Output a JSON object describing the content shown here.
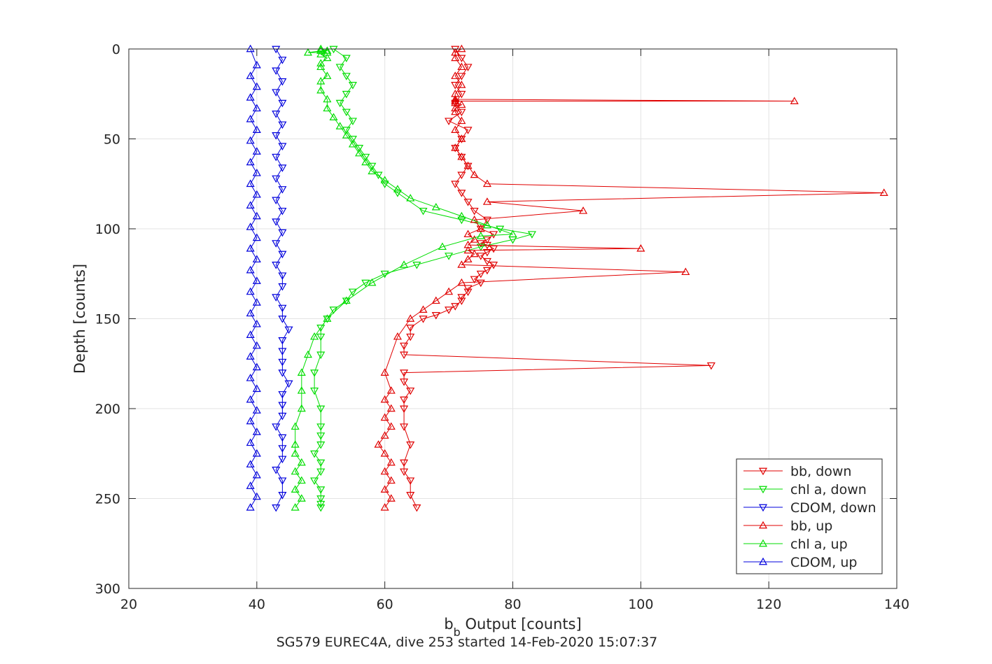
{
  "chart_data": {
    "type": "line",
    "xlabel_main": "b",
    "xlabel_sub": "b",
    "xlabel_rest": " Output [counts]",
    "ylabel": "Depth [counts]",
    "caption": "SG579 EUREC4A, dive 253 started 14-Feb-2020 15:07:37",
    "xlim": [
      20,
      140
    ],
    "ylim": [
      0,
      300
    ],
    "y_reversed": true,
    "grid": true,
    "legend_position": "bottom-right",
    "x_ticks": [
      20,
      40,
      60,
      80,
      100,
      120,
      140
    ],
    "y_ticks": [
      0,
      50,
      100,
      150,
      200,
      250,
      300
    ],
    "series": [
      {
        "name": "bb, down",
        "color": "#e00000",
        "marker": "triangle-down",
        "x": [
          71,
          72,
          73,
          72,
          71,
          72,
          71,
          72,
          70,
          73,
          72,
          71,
          72,
          73,
          72,
          71,
          72,
          73,
          74,
          76,
          75,
          77,
          76,
          75,
          76,
          77,
          76,
          75,
          76,
          77,
          76,
          75,
          74,
          75,
          73,
          73,
          72,
          72,
          71,
          70,
          68,
          66,
          64,
          64,
          63,
          63,
          111,
          63,
          63,
          64,
          63,
          63,
          63,
          64,
          63,
          63,
          64,
          64,
          65
        ],
        "y": [
          0,
          5,
          10,
          15,
          20,
          25,
          30,
          35,
          40,
          45,
          50,
          55,
          60,
          65,
          70,
          75,
          80,
          85,
          90,
          95,
          100,
          103,
          106,
          108,
          109,
          111,
          113,
          115,
          118,
          120,
          123,
          125,
          128,
          130,
          133,
          135,
          138,
          140,
          143,
          145,
          148,
          150,
          155,
          160,
          165,
          170,
          176,
          180,
          185,
          190,
          195,
          200,
          210,
          220,
          230,
          235,
          240,
          248,
          255
        ]
      },
      {
        "name": "chl a, down",
        "color": "#00dd00",
        "marker": "triangle-down",
        "x": [
          52,
          54,
          53,
          54,
          55,
          54,
          53,
          54,
          55,
          54,
          55,
          56,
          57,
          58,
          59,
          60,
          62,
          66,
          72,
          78,
          83,
          80,
          75,
          70,
          65,
          60,
          57,
          55,
          54,
          52,
          51,
          50,
          50,
          50,
          49,
          49,
          50,
          50,
          50,
          50,
          49,
          50,
          50,
          49,
          50,
          50,
          50,
          50
        ],
        "y": [
          0,
          5,
          10,
          15,
          20,
          25,
          30,
          35,
          40,
          45,
          50,
          55,
          60,
          65,
          70,
          75,
          80,
          90,
          95,
          100,
          103,
          106,
          110,
          115,
          120,
          125,
          130,
          135,
          140,
          145,
          150,
          155,
          160,
          170,
          180,
          190,
          200,
          210,
          215,
          220,
          225,
          230,
          235,
          240,
          245,
          250,
          253,
          255
        ]
      },
      {
        "name": "CDOM, down",
        "color": "#0000dd",
        "marker": "triangle-down",
        "x": [
          43,
          44,
          43,
          44,
          43,
          44,
          43,
          44,
          43,
          44,
          43,
          44,
          43,
          44,
          43,
          44,
          43,
          44,
          43,
          44,
          43,
          44,
          44,
          43,
          44,
          44,
          45,
          44,
          44,
          44,
          44,
          45,
          44,
          44,
          44,
          43,
          44,
          44,
          44,
          43,
          44,
          44,
          43
        ],
        "y": [
          0,
          6,
          12,
          18,
          24,
          30,
          36,
          42,
          48,
          54,
          60,
          66,
          72,
          78,
          84,
          90,
          96,
          102,
          108,
          114,
          120,
          126,
          132,
          138,
          144,
          150,
          156,
          162,
          168,
          174,
          180,
          186,
          192,
          198,
          204,
          210,
          216,
          222,
          228,
          234,
          240,
          248,
          255
        ]
      },
      {
        "name": "bb, up",
        "color": "#e00000",
        "marker": "triangle-up",
        "x": [
          60,
          61,
          60,
          61,
          60,
          61,
          60,
          59,
          60,
          61,
          60,
          61,
          60,
          61,
          60,
          62,
          64,
          66,
          68,
          70,
          72,
          107,
          72,
          73,
          74,
          73,
          100,
          73,
          74,
          73,
          75,
          74,
          91,
          76,
          138,
          76,
          74,
          73,
          72,
          71,
          72,
          71,
          72,
          71,
          71,
          72,
          71,
          71,
          124,
          71,
          71,
          72,
          71,
          72,
          71,
          71,
          72
        ],
        "y": [
          255,
          250,
          245,
          240,
          235,
          230,
          225,
          220,
          215,
          210,
          205,
          200,
          195,
          190,
          180,
          160,
          150,
          145,
          140,
          135,
          130,
          124,
          120,
          117,
          114,
          112,
          111,
          109,
          106,
          103,
          100,
          95,
          90,
          85,
          80,
          75,
          70,
          65,
          60,
          55,
          50,
          45,
          40,
          35,
          33,
          31,
          30,
          29,
          29,
          28,
          25,
          20,
          15,
          10,
          5,
          2,
          0
        ]
      },
      {
        "name": "chl a, up",
        "color": "#00dd00",
        "marker": "triangle-up",
        "x": [
          46,
          47,
          46,
          47,
          46,
          47,
          46,
          46,
          46,
          47,
          47,
          47,
          48,
          49,
          51,
          54,
          58,
          63,
          69,
          75,
          80,
          76,
          72,
          68,
          64,
          62,
          60,
          58,
          57,
          56,
          55,
          54,
          53,
          52,
          51,
          51,
          50,
          50,
          51,
          50,
          50,
          51,
          50,
          51,
          48,
          50,
          51,
          50
        ],
        "y": [
          255,
          250,
          245,
          240,
          235,
          230,
          225,
          220,
          210,
          200,
          190,
          180,
          170,
          160,
          150,
          140,
          130,
          120,
          110,
          104,
          103,
          98,
          93,
          88,
          83,
          78,
          73,
          68,
          63,
          58,
          53,
          48,
          43,
          38,
          33,
          28,
          23,
          18,
          15,
          10,
          8,
          5,
          3,
          2,
          2,
          1,
          1,
          0
        ]
      },
      {
        "name": "CDOM, up",
        "color": "#0000dd",
        "marker": "triangle-up",
        "x": [
          39,
          40,
          39,
          40,
          39,
          40,
          39,
          40,
          39,
          40,
          39,
          40,
          39,
          40,
          39,
          40,
          39,
          40,
          39,
          40,
          39,
          40,
          39,
          40,
          39,
          40,
          39,
          40,
          39,
          40,
          39,
          40,
          39,
          40,
          39,
          40,
          39,
          40,
          39,
          40,
          39,
          40,
          39
        ],
        "y": [
          255,
          249,
          243,
          237,
          231,
          225,
          219,
          213,
          207,
          201,
          195,
          189,
          183,
          177,
          171,
          165,
          159,
          153,
          147,
          141,
          135,
          129,
          123,
          117,
          111,
          105,
          99,
          93,
          87,
          81,
          75,
          69,
          63,
          57,
          51,
          45,
          39,
          33,
          27,
          21,
          15,
          9,
          0
        ]
      }
    ]
  }
}
